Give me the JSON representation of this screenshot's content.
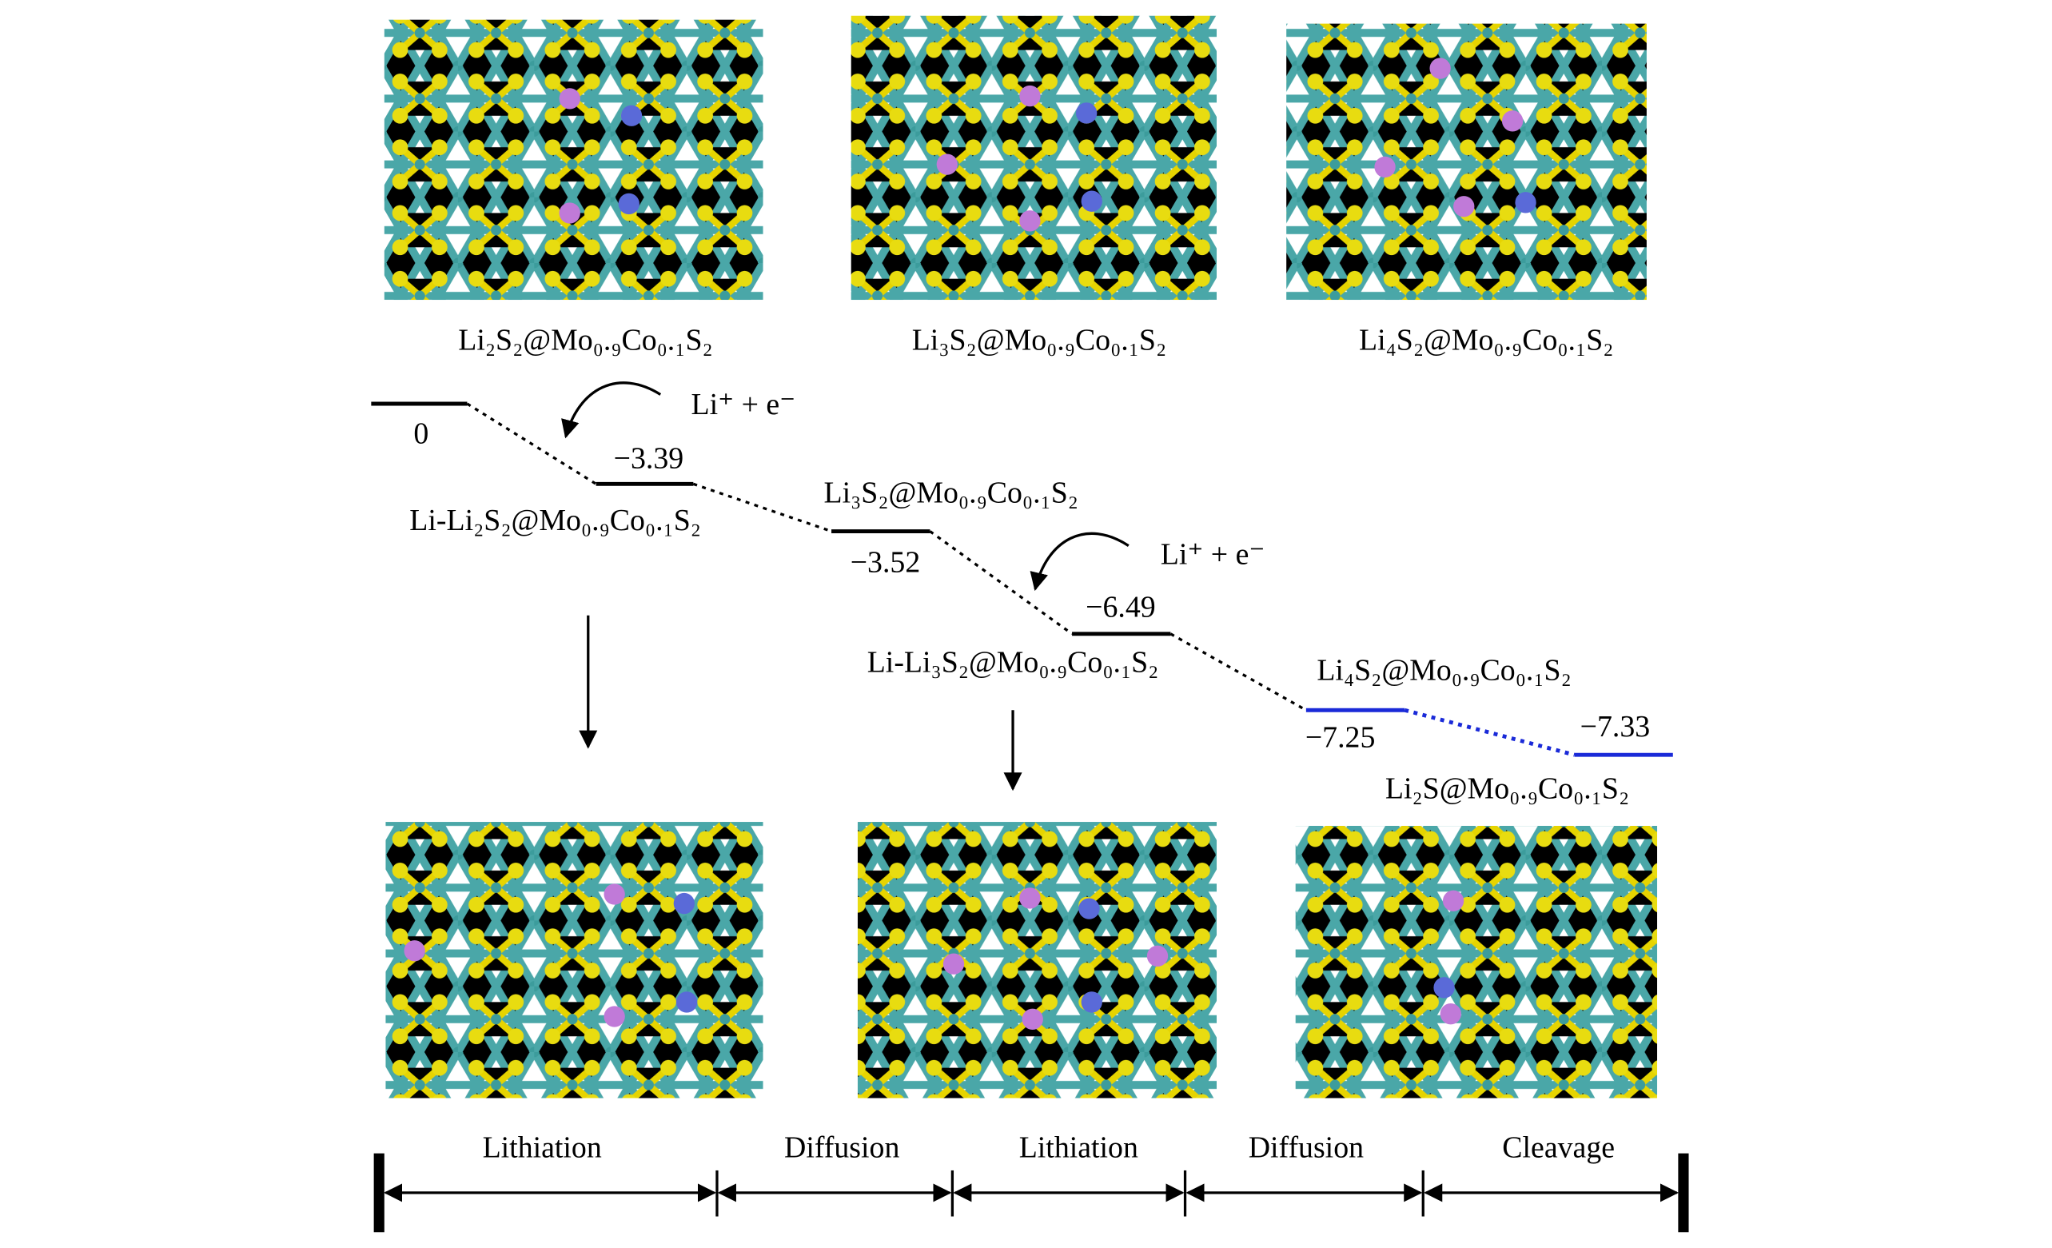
{
  "top_structures": [
    "Li₂S₂@Mo₀.₉Co₀.₁S₂",
    "Li₃S₂@Mo₀.₉Co₀.₁S₂",
    "Li₄S₂@Mo₀.₉Co₀.₁S₂"
  ],
  "levels": [
    {
      "energy": "0"
    },
    {
      "energy": "−3.39",
      "name": "Li-Li₂S₂@Mo₀.₉Co₀.₁S₂"
    },
    {
      "energy": "−3.52",
      "name": "Li₃S₂@Mo₀.₉Co₀.₁S₂"
    },
    {
      "energy": "−6.49",
      "name": "Li-Li₃S₂@Mo₀.₉Co₀.₁S₂"
    },
    {
      "energy": "−7.25",
      "name": "Li₄S₂@Mo₀.₉Co₀.₁S₂"
    },
    {
      "energy": "−7.33",
      "name": "Li₂S@Mo₀.₉Co₀.₁S₂"
    }
  ],
  "reactions": [
    "Li⁺ + e⁻",
    "Li⁺ + e⁻"
  ],
  "stages": [
    "Lithiation",
    "Diffusion",
    "Lithiation",
    "Diffusion",
    "Cleavage"
  ]
}
